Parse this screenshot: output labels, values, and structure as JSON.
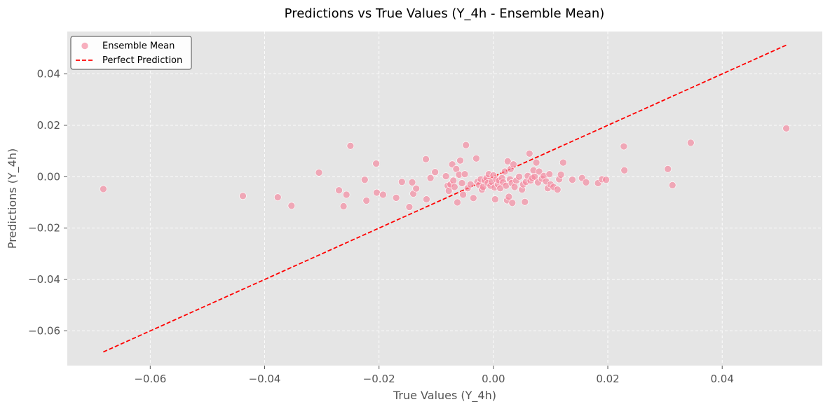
{
  "chart_data": {
    "type": "scatter",
    "title": "Predictions vs True Values (Y_4h - Ensemble Mean)",
    "xlabel": "True Values (Y_4h)",
    "ylabel": "Predictions (Y_4h)",
    "xlim": [
      -0.0745,
      0.0575
    ],
    "ylim": [
      -0.0735,
      0.0565
    ],
    "xticks": [
      -0.06,
      -0.04,
      -0.02,
      0.0,
      0.02,
      0.04
    ],
    "xtick_labels": [
      "−0.06",
      "−0.04",
      "−0.02",
      "0.00",
      "0.02",
      "0.04"
    ],
    "yticks": [
      -0.06,
      -0.04,
      -0.02,
      0.0,
      0.02,
      0.04
    ],
    "ytick_labels": [
      "−0.06",
      "−0.04",
      "−0.02",
      "0.00",
      "0.02",
      "0.04"
    ],
    "grid": true,
    "legend_position": "upper-left",
    "colors": {
      "points": "#f4869c",
      "perfect_line": "#ff0000",
      "plot_background": "#e5e5e5",
      "grid": "#ffffff"
    },
    "series": [
      {
        "name": "Ensemble Mean",
        "kind": "scatter",
        "points": [
          [
            -0.0682,
            -0.0048
          ],
          [
            -0.0438,
            -0.0075
          ],
          [
            -0.0377,
            -0.008
          ],
          [
            -0.0353,
            -0.0113
          ],
          [
            -0.0305,
            0.0016
          ],
          [
            -0.027,
            -0.0053
          ],
          [
            -0.0262,
            -0.0115
          ],
          [
            -0.0257,
            -0.007
          ],
          [
            -0.025,
            0.012
          ],
          [
            -0.0225,
            -0.0012
          ],
          [
            -0.0222,
            -0.0093
          ],
          [
            -0.0205,
            0.0051
          ],
          [
            -0.0204,
            -0.0062
          ],
          [
            -0.0193,
            -0.007
          ],
          [
            -0.017,
            -0.0082
          ],
          [
            -0.016,
            -0.002
          ],
          [
            -0.0147,
            -0.0118
          ],
          [
            -0.0142,
            -0.0022
          ],
          [
            -0.014,
            -0.0066
          ],
          [
            -0.0135,
            -0.0046
          ],
          [
            -0.0118,
            0.0068
          ],
          [
            -0.0117,
            -0.0088
          ],
          [
            -0.011,
            -0.0005
          ],
          [
            -0.0102,
            0.0018
          ],
          [
            -0.0083,
            0.0002
          ],
          [
            -0.008,
            -0.0035
          ],
          [
            -0.0078,
            -0.0055
          ],
          [
            -0.0075,
            -0.003
          ],
          [
            -0.0072,
            0.0048
          ],
          [
            -0.007,
            -0.0015
          ],
          [
            -0.0068,
            -0.004
          ],
          [
            -0.0065,
            0.003
          ],
          [
            -0.0063,
            -0.01
          ],
          [
            -0.006,
            0.0008
          ],
          [
            -0.0058,
            0.0063
          ],
          [
            -0.0055,
            -0.0025
          ],
          [
            -0.0053,
            -0.007
          ],
          [
            -0.005,
            0.001
          ],
          [
            -0.0048,
            0.0123
          ],
          [
            -0.0045,
            -0.0045
          ],
          [
            -0.004,
            -0.003
          ],
          [
            -0.0035,
            -0.0083
          ],
          [
            -0.003,
            0.0071
          ],
          [
            -0.0028,
            -0.002
          ],
          [
            -0.0025,
            -0.0032
          ],
          [
            -0.0022,
            -0.001
          ],
          [
            -0.002,
            -0.005
          ],
          [
            -0.0018,
            -0.004
          ],
          [
            -0.0015,
            -0.0015
          ],
          [
            -0.0012,
            -0.0005
          ],
          [
            -0.001,
            -0.0025
          ],
          [
            -0.0008,
            0.001
          ],
          [
            -0.0005,
            -0.0035
          ],
          [
            -0.0003,
            -0.002
          ],
          [
            0.0,
            0.0005
          ],
          [
            0.0002,
            -0.0042
          ],
          [
            0.0003,
            -0.0088
          ],
          [
            0.0005,
            -0.001
          ],
          [
            0.0008,
            -0.003
          ],
          [
            0.001,
            -0.0015
          ],
          [
            0.0012,
            -0.0045
          ],
          [
            0.0015,
            -0.0005
          ],
          [
            0.0017,
            -0.0022
          ],
          [
            0.002,
            0.002
          ],
          [
            0.0022,
            -0.0035
          ],
          [
            0.0024,
            -0.0092
          ],
          [
            0.0025,
            0.006
          ],
          [
            0.0027,
            -0.0078
          ],
          [
            0.0029,
            -0.001
          ],
          [
            0.003,
            0.003
          ],
          [
            0.0032,
            -0.0025
          ],
          [
            0.0033,
            -0.0102
          ],
          [
            0.0035,
            0.0048
          ],
          [
            0.0037,
            -0.004
          ],
          [
            0.004,
            -0.0015
          ],
          [
            0.0045,
            0.0
          ],
          [
            0.005,
            -0.005
          ],
          [
            0.0052,
            -0.003
          ],
          [
            0.0055,
            -0.0098
          ],
          [
            0.0057,
            -0.002
          ],
          [
            0.006,
            0.0003
          ],
          [
            0.0063,
            0.009
          ],
          [
            0.0065,
            -0.0015
          ],
          [
            0.0068,
            -0.0005
          ],
          [
            0.007,
            0.0025
          ],
          [
            0.0072,
            0.0
          ],
          [
            0.0075,
            0.0055
          ],
          [
            0.0078,
            -0.0022
          ],
          [
            0.008,
            0.002
          ],
          [
            0.0085,
            -0.0008
          ],
          [
            0.0088,
            0.0003
          ],
          [
            0.0092,
            -0.0018
          ],
          [
            0.0095,
            -0.0045
          ],
          [
            0.0098,
            0.001
          ],
          [
            0.01,
            -0.003
          ],
          [
            0.0105,
            -0.004
          ],
          [
            0.0112,
            -0.005
          ],
          [
            0.0115,
            -0.001
          ],
          [
            0.0118,
            0.0008
          ],
          [
            0.0122,
            0.0055
          ],
          [
            0.0138,
            -0.0012
          ],
          [
            0.0155,
            -0.0005
          ],
          [
            0.0162,
            -0.0022
          ],
          [
            0.0183,
            -0.0025
          ],
          [
            0.019,
            -0.001
          ],
          [
            0.0197,
            -0.0012
          ],
          [
            0.0228,
            0.0118
          ],
          [
            0.0229,
            0.0025
          ],
          [
            0.0305,
            0.003
          ],
          [
            0.0313,
            -0.0033
          ],
          [
            0.0345,
            0.0132
          ],
          [
            0.0512,
            0.0188
          ]
        ]
      },
      {
        "name": "Perfect Prediction",
        "kind": "line",
        "style": "dashed",
        "points": [
          [
            -0.0682,
            -0.0682
          ],
          [
            0.0512,
            0.0512
          ]
        ]
      }
    ]
  }
}
